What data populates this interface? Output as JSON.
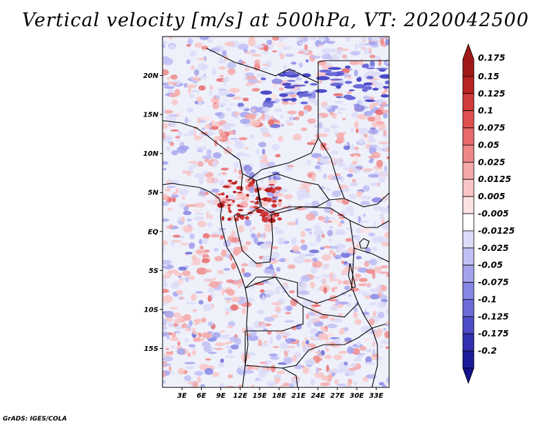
{
  "title": "Vertical velocity [m/s] at 500hPa, VT: 2020042500",
  "credit": "GrADS: IGES/COLA",
  "map": {
    "lon_range": [
      0,
      35
    ],
    "lat_range": [
      -20,
      25
    ],
    "lat_ticks": [
      {
        "value": 20,
        "label": "20N"
      },
      {
        "value": 15,
        "label": "15N"
      },
      {
        "value": 10,
        "label": "10N"
      },
      {
        "value": 5,
        "label": "5N"
      },
      {
        "value": 0,
        "label": "EQ"
      },
      {
        "value": -5,
        "label": "5S"
      },
      {
        "value": -10,
        "label": "10S"
      },
      {
        "value": -15,
        "label": "15S"
      }
    ],
    "lon_ticks": [
      {
        "value": 3,
        "label": "3E"
      },
      {
        "value": 6,
        "label": "6E"
      },
      {
        "value": 9,
        "label": "9E"
      },
      {
        "value": 12,
        "label": "12E"
      },
      {
        "value": 15,
        "label": "15E"
      },
      {
        "value": 18,
        "label": "18E"
      },
      {
        "value": 21,
        "label": "21E"
      },
      {
        "value": 24,
        "label": "24E"
      },
      {
        "value": 27,
        "label": "27E"
      },
      {
        "value": 30,
        "label": "30E"
      },
      {
        "value": 33,
        "label": "33E"
      }
    ]
  },
  "colorbar": {
    "levels": [
      {
        "label": "0.175",
        "color": "#a01818"
      },
      {
        "label": "0.15",
        "color": "#b82222"
      },
      {
        "label": "0.125",
        "color": "#d03a3a"
      },
      {
        "label": "0.1",
        "color": "#e05050"
      },
      {
        "label": "0.075",
        "color": "#e86a6a"
      },
      {
        "label": "0.05",
        "color": "#ee8888"
      },
      {
        "label": "0.025",
        "color": "#f4a8a8"
      },
      {
        "label": "0.0125",
        "color": "#f8c6c6"
      },
      {
        "label": "0.005",
        "color": "#fce2e2"
      },
      {
        "label": "-0.005",
        "color": "#ffffff"
      },
      {
        "label": "-0.0125",
        "color": "#dcdcf8"
      },
      {
        "label": "-0.025",
        "color": "#c0c0f4"
      },
      {
        "label": "-0.05",
        "color": "#a4a4ee"
      },
      {
        "label": "-0.075",
        "color": "#8686e4"
      },
      {
        "label": "-0.1",
        "color": "#6a6ad8"
      },
      {
        "label": "-0.125",
        "color": "#4c4cc8"
      },
      {
        "label": "-0.175",
        "color": "#3030b0"
      },
      {
        "label": "-0.2",
        "color": "#1c1c9a"
      }
    ],
    "bottom_color": "#12128a"
  }
}
